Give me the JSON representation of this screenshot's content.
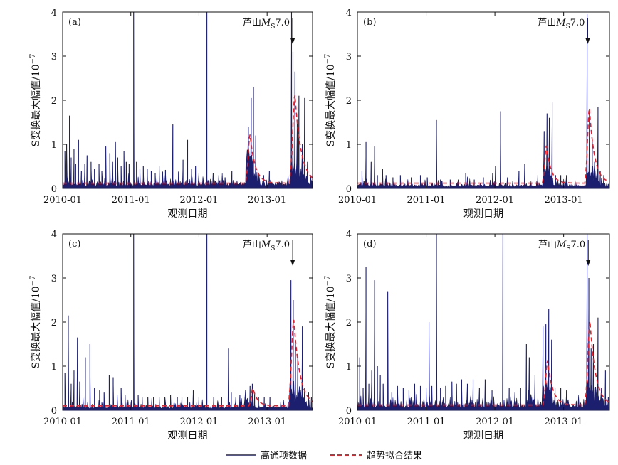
{
  "chart_data": [
    {
      "panel": "(a)",
      "type": "bar",
      "title": "",
      "xlabel": "观测日期",
      "ylabel": "S变换最大幅值/10",
      "ylabel_exponent": "−7",
      "x_ticks": [
        "2010-01",
        "2011-01",
        "2012-01",
        "2013-01"
      ],
      "y_ticks": [
        "0",
        "1",
        "2",
        "3",
        "4"
      ],
      "ylim": [
        0,
        4
      ],
      "xlim_months": [
        0,
        44
      ],
      "annotation": {
        "text_pre": "芦山",
        "text_M": "M",
        "text_sub": "S",
        "text_post": "7.0",
        "month": 40.5
      },
      "baseline": 0.08,
      "trend_baseline": 0.12,
      "noise": 0.12,
      "noise_density": 0.45,
      "spikes": [
        [
          0.4,
          0.85
        ],
        [
          0.7,
          1.0
        ],
        [
          1.2,
          1.65
        ],
        [
          1.5,
          0.7
        ],
        [
          2.0,
          0.9
        ],
        [
          2.3,
          0.55
        ],
        [
          2.8,
          1.1
        ],
        [
          3.3,
          0.4
        ],
        [
          3.9,
          0.55
        ],
        [
          4.3,
          0.75
        ],
        [
          5.0,
          0.6
        ],
        [
          5.6,
          0.45
        ],
        [
          6.4,
          0.55
        ],
        [
          6.9,
          0.4
        ],
        [
          7.6,
          0.95
        ],
        [
          8.3,
          0.8
        ],
        [
          8.8,
          0.6
        ],
        [
          9.3,
          1.05
        ],
        [
          9.7,
          0.7
        ],
        [
          10.3,
          0.5
        ],
        [
          10.8,
          0.85
        ],
        [
          11.2,
          0.6
        ],
        [
          11.7,
          0.55
        ],
        [
          12.5,
          4.0
        ],
        [
          13.0,
          0.6
        ],
        [
          13.6,
          0.45
        ],
        [
          14.2,
          0.5
        ],
        [
          14.9,
          0.45
        ],
        [
          15.6,
          0.4
        ],
        [
          16.3,
          0.35
        ],
        [
          17.0,
          0.5
        ],
        [
          17.6,
          0.38
        ],
        [
          18.1,
          0.42
        ],
        [
          19.4,
          1.45
        ],
        [
          20.4,
          0.38
        ],
        [
          21.2,
          0.65
        ],
        [
          22.0,
          1.1
        ],
        [
          22.7,
          0.45
        ],
        [
          23.4,
          0.5
        ],
        [
          24.0,
          0.35
        ],
        [
          25.4,
          4.0
        ],
        [
          26.5,
          0.35
        ],
        [
          27.5,
          0.3
        ],
        [
          28.6,
          0.25
        ],
        [
          29.8,
          0.4
        ],
        [
          32.7,
          1.4
        ],
        [
          33.2,
          2.05
        ],
        [
          33.6,
          2.3
        ],
        [
          34.0,
          1.2
        ],
        [
          34.5,
          0.35
        ],
        [
          35.4,
          0.3
        ],
        [
          36.4,
          0.4
        ],
        [
          40.3,
          4.0
        ],
        [
          40.55,
          3.1
        ],
        [
          40.9,
          2.65
        ],
        [
          41.3,
          1.5
        ],
        [
          41.6,
          2.1
        ],
        [
          42.2,
          1.0
        ],
        [
          42.6,
          2.05
        ],
        [
          43.1,
          0.6
        ],
        [
          43.7,
          0.3
        ]
      ],
      "clusters": [
        {
          "start": 32.3,
          "end": 34.8,
          "amp": 1.25
        },
        {
          "start": 40.2,
          "end": 43.6,
          "amp": 1.05
        }
      ],
      "trend_peaks": [
        {
          "center": 33.0,
          "width": 0.9,
          "amp": 1.1
        },
        {
          "center": 40.9,
          "width": 1.1,
          "amp": 2.0
        }
      ]
    },
    {
      "panel": "(b)",
      "type": "bar",
      "title": "",
      "xlabel": "观测日期",
      "ylabel": "S变换最大幅值/10",
      "ylabel_exponent": "−7",
      "x_ticks": [
        "2010-01",
        "2011-01",
        "2012-01",
        "2013-01"
      ],
      "y_ticks": [
        "0",
        "1",
        "2",
        "3",
        "4"
      ],
      "ylim": [
        0,
        4
      ],
      "xlim_months": [
        0,
        44
      ],
      "annotation": {
        "text_pre": "芦山",
        "text_M": "M",
        "text_sub": "S",
        "text_post": "7.0",
        "month": 40.2
      },
      "baseline": 0.06,
      "trend_baseline": 0.12,
      "noise": 0.1,
      "noise_density": 0.3,
      "spikes": [
        [
          0.8,
          0.4
        ],
        [
          1.5,
          1.05
        ],
        [
          2.4,
          0.6
        ],
        [
          3.0,
          0.95
        ],
        [
          3.5,
          0.3
        ],
        [
          4.4,
          0.45
        ],
        [
          5.0,
          0.3
        ],
        [
          6.2,
          0.25
        ],
        [
          7.5,
          0.3
        ],
        [
          9.4,
          0.25
        ],
        [
          11.0,
          0.3
        ],
        [
          12.2,
          0.25
        ],
        [
          13.8,
          1.55
        ],
        [
          14.5,
          0.2
        ],
        [
          16.2,
          0.2
        ],
        [
          17.6,
          0.2
        ],
        [
          18.9,
          0.35
        ],
        [
          20.4,
          0.2
        ],
        [
          22.0,
          0.25
        ],
        [
          23.6,
          0.35
        ],
        [
          24.1,
          0.5
        ],
        [
          25.0,
          1.75
        ],
        [
          26.2,
          0.25
        ],
        [
          28.2,
          0.4
        ],
        [
          29.2,
          0.55
        ],
        [
          31.5,
          0.3
        ],
        [
          32.6,
          1.3
        ],
        [
          33.1,
          1.7
        ],
        [
          33.5,
          1.6
        ],
        [
          34.0,
          1.95
        ],
        [
          34.6,
          0.3
        ],
        [
          35.5,
          0.3
        ],
        [
          36.5,
          0.3
        ],
        [
          40.1,
          3.95
        ],
        [
          40.5,
          1.8
        ],
        [
          41.0,
          1.1
        ],
        [
          41.4,
          0.6
        ],
        [
          42.0,
          1.85
        ],
        [
          42.4,
          0.4
        ],
        [
          43.0,
          0.3
        ],
        [
          43.8,
          0.1
        ]
      ],
      "clusters": [
        {
          "start": 32.4,
          "end": 34.5,
          "amp": 0.85
        },
        {
          "start": 40.0,
          "end": 42.5,
          "amp": 0.9
        }
      ],
      "trend_peaks": [
        {
          "center": 33.0,
          "width": 0.8,
          "amp": 0.85
        },
        {
          "center": 40.5,
          "width": 0.9,
          "amp": 1.7
        }
      ]
    },
    {
      "panel": "(c)",
      "type": "bar",
      "title": "",
      "xlabel": "观测日期",
      "ylabel": "S变换最大幅值/10",
      "ylabel_exponent": "−7",
      "x_ticks": [
        "2010-01",
        "2011-01",
        "2012-01",
        "2013-01"
      ],
      "y_ticks": [
        "0",
        "1",
        "2",
        "3",
        "4"
      ],
      "ylim": [
        0,
        4
      ],
      "xlim_months": [
        0,
        44
      ],
      "annotation": {
        "text_pre": "芦山",
        "text_M": "M",
        "text_sub": "S",
        "text_post": "7.0",
        "month": 40.5
      },
      "baseline": 0.06,
      "trend_baseline": 0.1,
      "noise": 0.12,
      "noise_density": 0.35,
      "spikes": [
        [
          0.4,
          0.85
        ],
        [
          1.0,
          2.15
        ],
        [
          1.5,
          0.6
        ],
        [
          2.0,
          0.9
        ],
        [
          2.6,
          1.65
        ],
        [
          3.0,
          0.65
        ],
        [
          4.0,
          1.2
        ],
        [
          4.8,
          1.5
        ],
        [
          5.6,
          0.5
        ],
        [
          6.5,
          0.45
        ],
        [
          7.3,
          0.4
        ],
        [
          8.2,
          0.8
        ],
        [
          8.9,
          0.75
        ],
        [
          9.6,
          0.35
        ],
        [
          10.3,
          0.5
        ],
        [
          11.0,
          0.35
        ],
        [
          12.5,
          4.0
        ],
        [
          13.3,
          0.35
        ],
        [
          14.0,
          0.3
        ],
        [
          15.0,
          0.3
        ],
        [
          16.0,
          0.3
        ],
        [
          17.0,
          0.3
        ],
        [
          18.0,
          0.3
        ],
        [
          19.0,
          0.35
        ],
        [
          20.2,
          0.3
        ],
        [
          21.0,
          0.3
        ],
        [
          22.0,
          0.3
        ],
        [
          23.0,
          0.45
        ],
        [
          24.0,
          0.3
        ],
        [
          25.4,
          4.0
        ],
        [
          26.6,
          0.3
        ],
        [
          28.0,
          0.3
        ],
        [
          29.2,
          1.4
        ],
        [
          29.7,
          0.4
        ],
        [
          30.5,
          0.3
        ],
        [
          31.2,
          0.35
        ],
        [
          32.2,
          0.45
        ],
        [
          33.0,
          0.55
        ],
        [
          33.4,
          0.6
        ],
        [
          33.8,
          0.4
        ],
        [
          34.5,
          0.3
        ],
        [
          35.5,
          0.3
        ],
        [
          36.5,
          0.3
        ],
        [
          40.2,
          2.95
        ],
        [
          40.6,
          2.5
        ],
        [
          41.0,
          1.5
        ],
        [
          41.4,
          1.25
        ],
        [
          42.2,
          1.9
        ],
        [
          42.6,
          0.5
        ],
        [
          43.3,
          0.4
        ],
        [
          43.8,
          0.3
        ]
      ],
      "clusters": [
        {
          "start": 32.0,
          "end": 34.2,
          "amp": 0.45
        },
        {
          "start": 40.0,
          "end": 43.5,
          "amp": 0.95
        }
      ],
      "trend_peaks": [
        {
          "center": 33.5,
          "width": 0.8,
          "amp": 0.4
        },
        {
          "center": 40.7,
          "width": 1.1,
          "amp": 1.95
        }
      ]
    },
    {
      "panel": "(d)",
      "type": "bar",
      "title": "",
      "xlabel": "观测日期",
      "ylabel": "S变换最大幅值/10",
      "ylabel_exponent": "−7",
      "x_ticks": [
        "2010-01",
        "2011-01",
        "2012-01",
        "2013-01"
      ],
      "y_ticks": [
        "0",
        "1",
        "2",
        "3",
        "4"
      ],
      "ylim": [
        0,
        4
      ],
      "xlim_months": [
        0,
        44
      ],
      "annotation": {
        "text_pre": "芦山",
        "text_M": "M",
        "text_sub": "S",
        "text_post": "7.0",
        "month": 40.3
      },
      "baseline": 0.08,
      "trend_baseline": 0.12,
      "noise": 0.15,
      "noise_density": 0.5,
      "spikes": [
        [
          0.4,
          1.2
        ],
        [
          1.0,
          0.5
        ],
        [
          1.5,
          3.25
        ],
        [
          2.0,
          0.6
        ],
        [
          2.5,
          0.9
        ],
        [
          3.0,
          2.95
        ],
        [
          3.5,
          1.0
        ],
        [
          4.0,
          0.8
        ],
        [
          4.5,
          0.6
        ],
        [
          5.3,
          2.7
        ],
        [
          6.0,
          0.4
        ],
        [
          7.0,
          0.55
        ],
        [
          8.0,
          0.5
        ],
        [
          9.0,
          0.45
        ],
        [
          10.0,
          0.6
        ],
        [
          11.0,
          0.55
        ],
        [
          12.0,
          0.5
        ],
        [
          12.5,
          2.0
        ],
        [
          13.0,
          0.55
        ],
        [
          13.8,
          4.0
        ],
        [
          14.5,
          0.5
        ],
        [
          15.4,
          0.55
        ],
        [
          16.5,
          0.65
        ],
        [
          17.3,
          0.6
        ],
        [
          18.2,
          0.7
        ],
        [
          19.2,
          0.6
        ],
        [
          20.2,
          0.7
        ],
        [
          21.3,
          0.5
        ],
        [
          22.3,
          0.7
        ],
        [
          23.5,
          0.45
        ],
        [
          25.4,
          4.0
        ],
        [
          26.5,
          0.5
        ],
        [
          27.5,
          0.4
        ],
        [
          28.5,
          0.5
        ],
        [
          29.5,
          1.5
        ],
        [
          30.0,
          1.2
        ],
        [
          31.0,
          0.8
        ],
        [
          32.4,
          1.9
        ],
        [
          32.9,
          1.95
        ],
        [
          33.4,
          2.3
        ],
        [
          33.9,
          1.6
        ],
        [
          34.5,
          0.5
        ],
        [
          35.5,
          0.5
        ],
        [
          36.5,
          0.45
        ],
        [
          40.1,
          4.0
        ],
        [
          40.4,
          3.0
        ],
        [
          40.8,
          1.4
        ],
        [
          41.2,
          1.5
        ],
        [
          42.0,
          2.1
        ],
        [
          42.6,
          0.5
        ],
        [
          43.3,
          0.9
        ],
        [
          43.8,
          0.3
        ]
      ],
      "clusters": [
        {
          "start": 29.8,
          "end": 31.8,
          "amp": 0.55
        },
        {
          "start": 32.3,
          "end": 34.6,
          "amp": 1.1
        },
        {
          "start": 40.0,
          "end": 43.6,
          "amp": 1.0
        }
      ],
      "trend_peaks": [
        {
          "center": 33.2,
          "width": 0.9,
          "amp": 1.0
        },
        {
          "center": 40.6,
          "width": 1.0,
          "amp": 1.9
        }
      ]
    }
  ],
  "legend": {
    "series_label": "高通项数据",
    "trend_label": "趋势拟合结果",
    "series_color": "#1c1f6e",
    "trend_color": "#e8202a"
  }
}
